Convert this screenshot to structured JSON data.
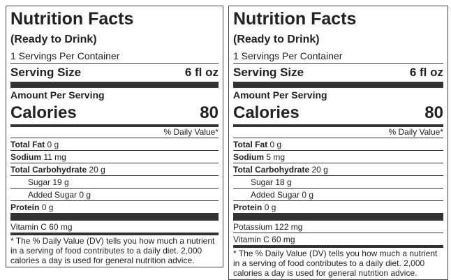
{
  "labels": [
    {
      "title": "Nutrition Facts",
      "subtitle": "(Ready to Drink)",
      "servings": "1 Servings Per Container",
      "serving_size_label": "Serving Size",
      "serving_size": "6 fl oz",
      "amount_per_serving": "Amount Per Serving",
      "calories_label": "Calories",
      "calories": 80,
      "daily_value_header": "% Daily Value*",
      "nutrients": [
        {
          "name": "Total Fat",
          "amount": "0 g"
        },
        {
          "name": "Sodium",
          "amount": "11 mg"
        },
        {
          "name": "Total Carbohydrate",
          "amount": "20 g",
          "sub": [
            {
              "name": "Sugar",
              "amount": "19 g"
            },
            {
              "name": "Added Sugar",
              "amount": "0 g"
            }
          ]
        },
        {
          "name": "Protein",
          "amount": "0 g"
        }
      ],
      "micronutrients": [
        {
          "name": "Vitamin C",
          "amount": "60 mg"
        }
      ],
      "footnote": "* The % Daily Value (DV) tells you how much a nutrient in a serving of food contributes to a daily diet. 2,000 calories a day is used for general nutrition advice."
    },
    {
      "title": "Nutrition Facts",
      "subtitle": "(Ready to Drink)",
      "servings": "1 Servings Per Container",
      "serving_size_label": "Serving Size",
      "serving_size": "6 fl oz",
      "amount_per_serving": "Amount Per Serving",
      "calories_label": "Calories",
      "calories": 80,
      "daily_value_header": "% Daily Value*",
      "nutrients": [
        {
          "name": "Total Fat",
          "amount": "0 g"
        },
        {
          "name": "Sodium",
          "amount": "5 mg"
        },
        {
          "name": "Total Carbohydrate",
          "amount": "20 g",
          "sub": [
            {
              "name": "Sugar",
              "amount": "18 g"
            },
            {
              "name": "Added Sugar",
              "amount": "0 g"
            }
          ]
        },
        {
          "name": "Protein",
          "amount": "0 g"
        }
      ],
      "micronutrients": [
        {
          "name": "Potassium",
          "amount": "122 mg"
        },
        {
          "name": "Vitamin C",
          "amount": "60 mg"
        }
      ],
      "footnote": "* The % Daily Value (DV) tells you how much a nutrient in a serving of food contributes to a daily diet. 2,000 calories a day is used for general nutrition advice."
    }
  ]
}
